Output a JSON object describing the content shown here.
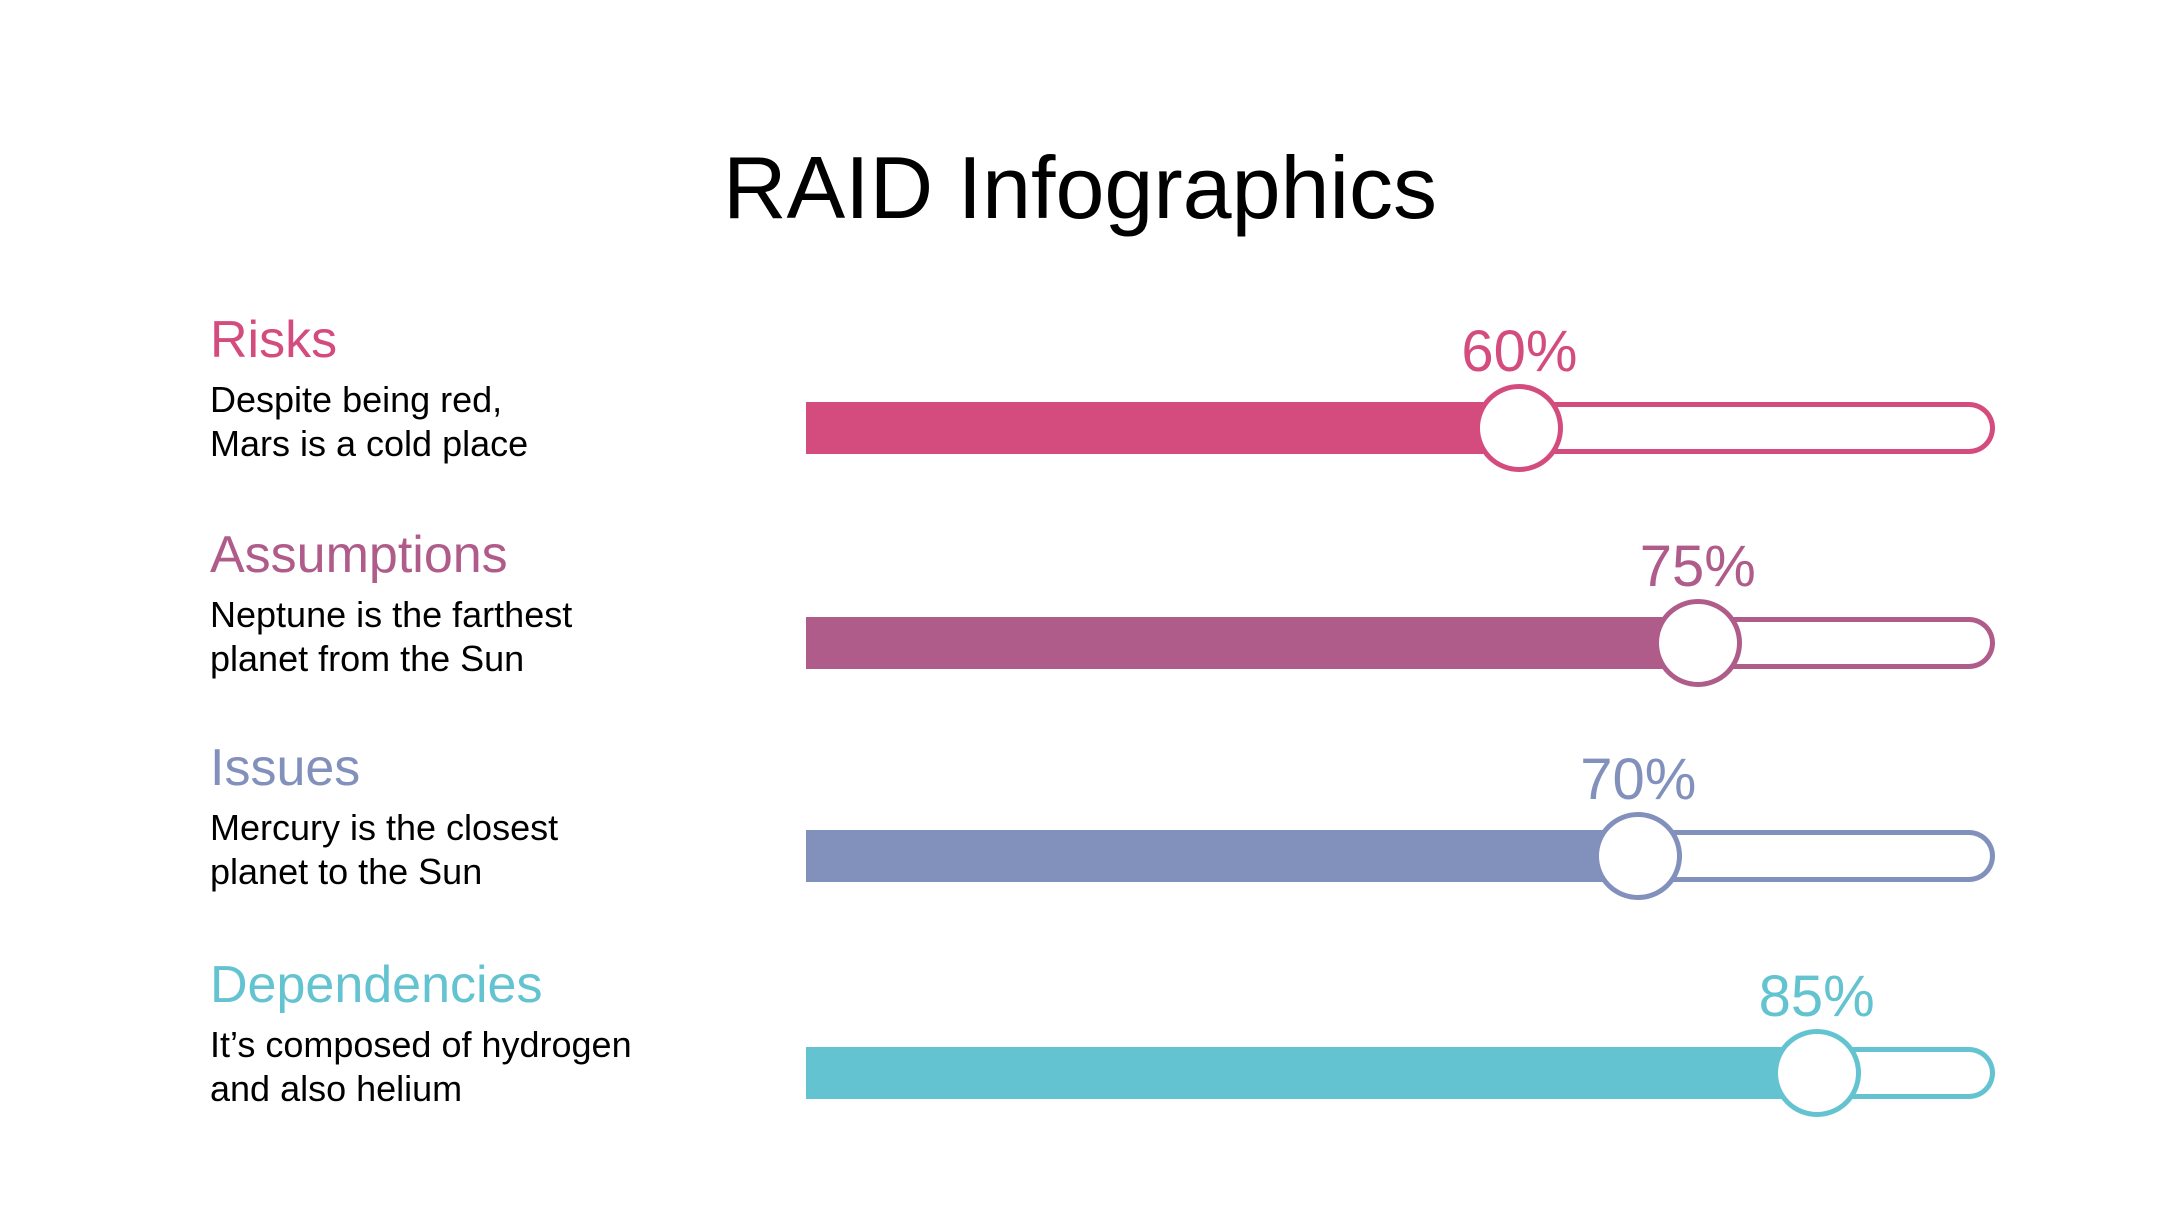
{
  "title": "RAID Infographics",
  "items": [
    {
      "heading": "Risks",
      "desc_lines": [
        "Despite being red,",
        "Mars is a cold place"
      ],
      "percent": 60,
      "percent_label": "60%",
      "color": "#D44C7E"
    },
    {
      "heading": "Assumptions",
      "desc_lines": [
        "Neptune is the farthest",
        "planet from the Sun"
      ],
      "percent": 75,
      "percent_label": "75%",
      "color": "#B05C8A"
    },
    {
      "heading": "Issues",
      "desc_lines": [
        "Mercury is the closest",
        "planet to the Sun"
      ],
      "percent": 70,
      "percent_label": "70%",
      "color": "#8290BC"
    },
    {
      "heading": "Dependencies",
      "desc_lines": [
        "It’s composed of hydrogen",
        "and also helium"
      ],
      "percent": 85,
      "percent_label": "85%",
      "color": "#64C3D0"
    }
  ]
}
